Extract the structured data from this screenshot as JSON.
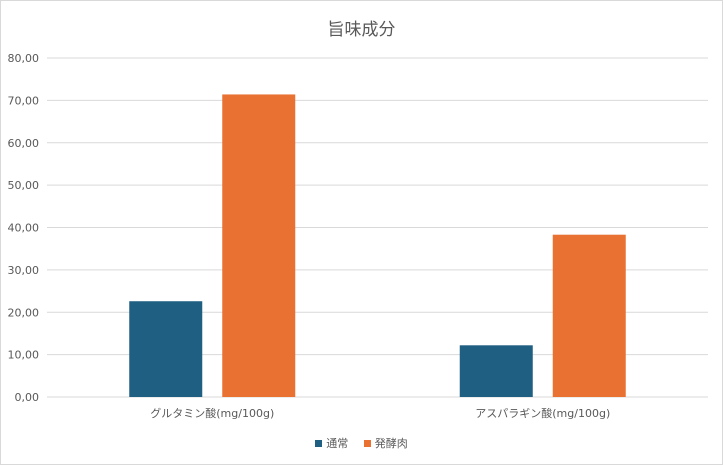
{
  "chart_data": {
    "type": "bar",
    "title": "旨味成分",
    "categories": [
      "グルタミン酸(mg/100g)",
      "アスパラギン酸(mg/100g)"
    ],
    "series": [
      {
        "name": "通常",
        "values": [
          22.6,
          12.2
        ],
        "color": "#1f5f82"
      },
      {
        "name": "発酵肉",
        "values": [
          71.4,
          38.3
        ],
        "color": "#e97132"
      }
    ],
    "ylim": [
      0,
      80
    ],
    "yticks": [
      "0,00",
      "10,00",
      "20,00",
      "30,00",
      "40,00",
      "50,00",
      "60,00",
      "70,00",
      "80,00"
    ],
    "ytick_values": [
      0,
      10,
      20,
      30,
      40,
      50,
      60,
      70,
      80
    ],
    "grid": true,
    "legend_position": "bottom",
    "xlabel": "",
    "ylabel": ""
  }
}
